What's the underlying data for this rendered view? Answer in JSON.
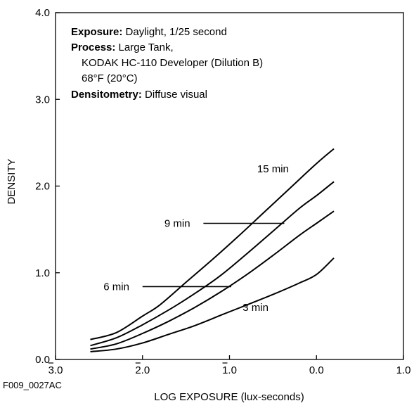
{
  "chart_data": {
    "type": "line",
    "xlabel": "LOG EXPOSURE (lux-seconds)",
    "ylabel": "DENSITY",
    "xlim": [
      -3.0,
      1.0
    ],
    "ylim": [
      0.0,
      4.0
    ],
    "grid": false,
    "x_ticks": [
      {
        "value": -3.0,
        "label": "3.0",
        "bar": true
      },
      {
        "value": -2.0,
        "label": "2.0",
        "bar": true
      },
      {
        "value": -1.0,
        "label": "1.0",
        "bar": true
      },
      {
        "value": 0.0,
        "label": "0.0",
        "bar": false
      },
      {
        "value": 1.0,
        "label": "1.0",
        "bar": false
      }
    ],
    "y_ticks": [
      {
        "value": 0.0,
        "label": "0.0"
      },
      {
        "value": 1.0,
        "label": "1.0"
      },
      {
        "value": 2.0,
        "label": "2.0"
      },
      {
        "value": 3.0,
        "label": "3.0"
      },
      {
        "value": 4.0,
        "label": "4.0"
      }
    ],
    "series": [
      {
        "name": "15 min",
        "x": [
          -2.6,
          -2.3,
          -2.0,
          -1.8,
          -1.5,
          -1.2,
          -0.9,
          -0.6,
          -0.3,
          0.0,
          0.2
        ],
        "y": [
          0.23,
          0.31,
          0.5,
          0.63,
          0.89,
          1.15,
          1.42,
          1.7,
          1.98,
          2.26,
          2.43
        ]
      },
      {
        "name": "9 min",
        "x": [
          -2.6,
          -2.3,
          -2.0,
          -1.7,
          -1.4,
          -1.1,
          -0.8,
          -0.5,
          -0.2,
          0.0,
          0.2
        ],
        "y": [
          0.16,
          0.25,
          0.4,
          0.57,
          0.76,
          0.97,
          1.22,
          1.48,
          1.74,
          1.89,
          2.05
        ]
      },
      {
        "name": "6 min",
        "x": [
          -2.6,
          -2.3,
          -2.0,
          -1.7,
          -1.4,
          -1.1,
          -0.8,
          -0.5,
          -0.2,
          0.0,
          0.2
        ],
        "y": [
          0.12,
          0.18,
          0.3,
          0.44,
          0.6,
          0.78,
          0.98,
          1.2,
          1.43,
          1.57,
          1.71
        ]
      },
      {
        "name": "3 min",
        "x": [
          -2.6,
          -2.3,
          -2.0,
          -1.7,
          -1.4,
          -1.1,
          -0.8,
          -0.5,
          -0.2,
          0.0,
          0.2
        ],
        "y": [
          0.09,
          0.12,
          0.19,
          0.29,
          0.39,
          0.51,
          0.63,
          0.75,
          0.88,
          0.98,
          1.17
        ]
      }
    ],
    "curve_labels": [
      {
        "text": "15 min",
        "x": -0.5,
        "y": 2.2,
        "leader": false
      },
      {
        "text": "9 min",
        "x": -1.6,
        "y": 1.57,
        "leader": true,
        "x1": -1.3,
        "x2": -0.37
      },
      {
        "text": "6 min",
        "x": -2.3,
        "y": 0.84,
        "leader": true,
        "x1": -2.0,
        "x2": -0.98
      },
      {
        "text": "3 min",
        "x": -0.7,
        "y": 0.6,
        "leader": false
      }
    ]
  },
  "info_box": {
    "exposure_label": "Exposure:",
    "exposure_value": " Daylight, 1/25 second",
    "process_label": "Process:",
    "process_value": " Large Tank,",
    "process_line2": "KODAK HC-110 Developer (Dilution B)",
    "process_line3": "68°F (20°C)",
    "densitometry_label": "Densitometry:",
    "densitometry_value": " Diffuse visual"
  },
  "figure_code": "F009_0027AC"
}
